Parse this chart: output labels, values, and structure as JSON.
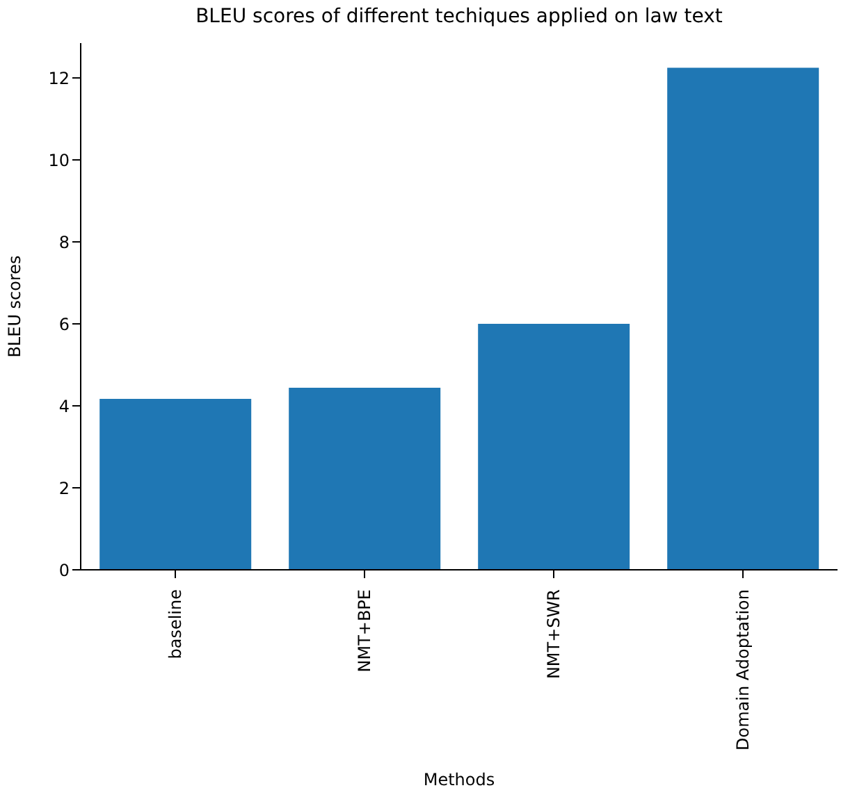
{
  "chart_data": {
    "type": "bar",
    "title": "BLEU scores of different techiques applied on law text",
    "xlabel": "Methods",
    "ylabel": "BLEU scores",
    "categories": [
      "baseline",
      "NMT+BPE",
      "NMT+SWR",
      "Domain Adoptation"
    ],
    "values": [
      4.17,
      4.44,
      6.0,
      12.25
    ],
    "color": "#1f77b4",
    "ylim": [
      0,
      12.85
    ],
    "yticks": [
      0,
      2,
      4,
      6,
      8,
      10,
      12
    ],
    "grid": false
  }
}
